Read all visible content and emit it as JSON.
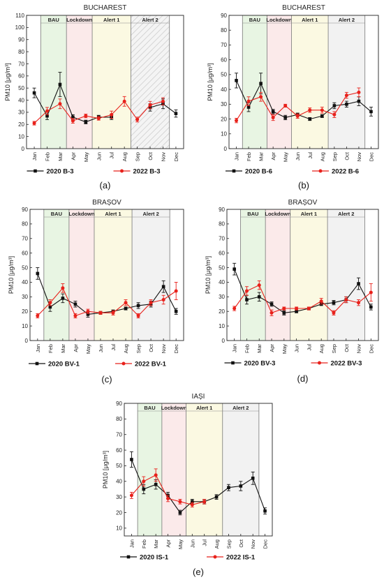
{
  "months": [
    "Jan",
    "Feb",
    "Mar",
    "Apr",
    "May",
    "Jun",
    "Jul",
    "Aug",
    "Sep",
    "Oct",
    "Nov",
    "Dec"
  ],
  "periods": [
    {
      "label": "BAU",
      "start": 1,
      "end": 3,
      "color": "#e8f5e3"
    },
    {
      "label": "Lockdown",
      "start": 3,
      "end": 5,
      "color": "#fbeaea"
    },
    {
      "label": "Alert 1",
      "start": 5,
      "end": 8,
      "color": "#fbf9e2"
    },
    {
      "label": "Alert 2",
      "start": 8,
      "end": 11,
      "color": "#f2f2f2"
    }
  ],
  "colors": {
    "s2020": "#111111",
    "s2022": "#e8211b"
  },
  "chart_data": [
    {
      "type": "line",
      "panel": "(a)",
      "title": "BUCHAREST",
      "ylabel": "PM10 [μg/m³]",
      "ylim": [
        0,
        110
      ],
      "yticks": [
        0,
        10,
        20,
        30,
        40,
        50,
        60,
        70,
        80,
        90,
        100,
        110
      ],
      "series": [
        {
          "name": "2020 B-3",
          "values": [
            46,
            27,
            53,
            26,
            22,
            26,
            26,
            null,
            null,
            34,
            37,
            29
          ],
          "errors": [
            4,
            3,
            10,
            2,
            1.5,
            1.5,
            2,
            null,
            null,
            3,
            4,
            3
          ]
        },
        {
          "name": "2022 B-3",
          "values": [
            21,
            31,
            37,
            23,
            27,
            25,
            28,
            39,
            24,
            36,
            39,
            null
          ],
          "errors": [
            1.5,
            3,
            4,
            2,
            1.5,
            1.5,
            3,
            4,
            2,
            3,
            3,
            null
          ]
        }
      ]
    },
    {
      "type": "line",
      "panel": "(b)",
      "title": "BUCHAREST",
      "ylabel": "PM10 [μg/m³]",
      "ylim": [
        0,
        90
      ],
      "yticks": [
        0,
        10,
        20,
        30,
        40,
        50,
        60,
        70,
        80,
        90
      ],
      "series": [
        {
          "name": "2020 B-6",
          "values": [
            46,
            28,
            44,
            25,
            21,
            23,
            20,
            22,
            29,
            30,
            32,
            25
          ],
          "errors": [
            5,
            3,
            7,
            1.5,
            1.5,
            1,
            1,
            1,
            2,
            2,
            3,
            3
          ]
        },
        {
          "name": "2022 B-6",
          "values": [
            19,
            32,
            35,
            21,
            29,
            22,
            26,
            26,
            23,
            36,
            38,
            null
          ],
          "errors": [
            1.5,
            3,
            3,
            2,
            1,
            1.5,
            1.5,
            2,
            2,
            2,
            3,
            null
          ]
        }
      ]
    },
    {
      "type": "line",
      "panel": "(c)",
      "title": "BRAȘOV",
      "ylabel": "PM10 [μg/m³]",
      "ylim": [
        0,
        90
      ],
      "yticks": [
        0,
        10,
        20,
        30,
        40,
        50,
        60,
        70,
        80,
        90
      ],
      "series": [
        {
          "name": "2020 BV-1",
          "values": [
            46,
            23,
            29,
            25,
            18,
            19,
            20,
            22,
            24,
            25,
            37,
            20
          ],
          "errors": [
            4,
            3,
            3,
            2,
            2,
            1,
            1,
            1,
            2,
            2,
            4,
            2
          ]
        },
        {
          "name": "2022 BV-1",
          "values": [
            17,
            26,
            36,
            17,
            20,
            19,
            19,
            26,
            17,
            26,
            28,
            34
          ],
          "errors": [
            1.5,
            2,
            3,
            1.5,
            1.5,
            1,
            1.5,
            2,
            1.5,
            2,
            3,
            6
          ]
        }
      ]
    },
    {
      "type": "line",
      "panel": "(d)",
      "title": "BRAȘOV",
      "ylabel": "PM10 [μg/m³]",
      "ylim": [
        0,
        90
      ],
      "yticks": [
        0,
        10,
        20,
        30,
        40,
        50,
        60,
        70,
        80,
        90
      ],
      "series": [
        {
          "name": "2020 BV-3",
          "values": [
            49,
            28,
            30,
            25,
            19,
            20,
            22,
            25,
            26,
            28,
            39,
            23
          ],
          "errors": [
            4,
            3,
            3,
            1.5,
            1.5,
            1,
            1,
            1,
            1.5,
            2,
            4,
            2
          ]
        },
        {
          "name": "2022 BV-3",
          "values": [
            22,
            34,
            38,
            19,
            22,
            22,
            22,
            27,
            19,
            28,
            26,
            33
          ],
          "errors": [
            1.5,
            3,
            3,
            2,
            1,
            1,
            1,
            2,
            1.5,
            2,
            2,
            6
          ]
        }
      ]
    },
    {
      "type": "line",
      "panel": "(e)",
      "title": "IAȘI",
      "ylabel": "PM10 [μg/m³]",
      "ylim": [
        5,
        90
      ],
      "yticks": [
        10,
        20,
        30,
        40,
        50,
        60,
        70,
        80,
        90
      ],
      "series": [
        {
          "name": "2020 IS-1",
          "values": [
            54,
            35,
            38,
            31,
            20,
            27,
            27,
            30,
            36,
            37,
            42,
            21
          ],
          "errors": [
            5,
            3,
            3,
            2,
            1.5,
            1.5,
            1.5,
            1.5,
            2,
            3,
            4,
            2
          ]
        },
        {
          "name": "2022 IS-1",
          "values": [
            31,
            40,
            44,
            29,
            27,
            25,
            27,
            null,
            null,
            null,
            null,
            null
          ],
          "errors": [
            2,
            3,
            4,
            2,
            1.5,
            1.5,
            1.5,
            null,
            null,
            null,
            null,
            null
          ]
        }
      ]
    }
  ]
}
